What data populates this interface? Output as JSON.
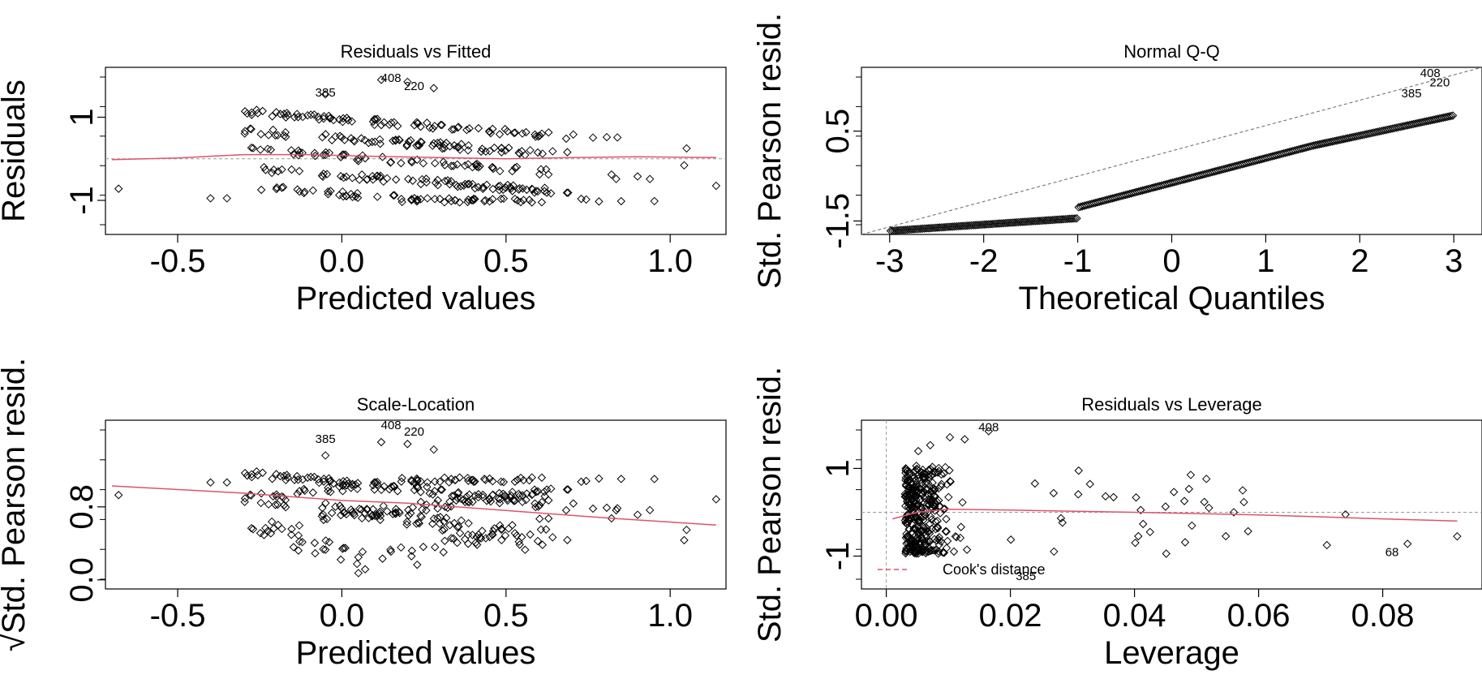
{
  "chart_data": [
    {
      "type": "scatter",
      "title": "Residuals vs Fitted",
      "xlabel": "Predicted values",
      "ylabel": "Residuals",
      "xlim": [
        -0.72,
        1.17
      ],
      "ylim": [
        -1.82,
        2.2
      ],
      "xticks": [
        -0.5,
        0.0,
        0.5,
        1.0
      ],
      "xtick_labels": [
        "-0.5",
        "0.0",
        "0.5",
        "1.0"
      ],
      "yticks": [
        -1,
        1
      ],
      "ytick_labels": [
        "-1",
        "1"
      ],
      "hline": 0,
      "smooth": [
        [
          -0.7,
          -0.02
        ],
        [
          -0.5,
          0.02
        ],
        [
          -0.3,
          0.1
        ],
        [
          -0.1,
          0.1
        ],
        [
          0.1,
          0.06
        ],
        [
          0.3,
          0.03
        ],
        [
          0.5,
          0.0
        ],
        [
          0.7,
          0.03
        ],
        [
          0.9,
          0.05
        ],
        [
          1.14,
          0.03
        ]
      ],
      "annotations": [
        {
          "label": "385",
          "x": -0.05,
          "y": 1.5
        },
        {
          "label": "408",
          "x": 0.15,
          "y": 1.85
        },
        {
          "label": "220",
          "x": 0.22,
          "y": 1.65
        }
      ]
    },
    {
      "type": "scatter",
      "title": "Normal Q-Q",
      "xlabel": "Theoretical Quantiles",
      "ylabel": "Std. Pearson resid.",
      "xlim": [
        -3.3,
        3.3
      ],
      "ylim": [
        -1.8,
        1.92
      ],
      "xticks": [
        -3,
        -2,
        -1,
        0,
        1,
        2,
        3
      ],
      "xtick_labels": [
        "-3",
        "-2",
        "-1",
        "0",
        "1",
        "2",
        "3"
      ],
      "yticks": [
        -1.5,
        0.5
      ],
      "ytick_labels": [
        "-1.5",
        "0.5"
      ],
      "refline": {
        "slope": 0.6,
        "intercept": 0
      },
      "annotations": [
        {
          "label": "408",
          "x": 2.75,
          "y": 1.7
        },
        {
          "label": "220",
          "x": 2.85,
          "y": 1.5
        },
        {
          "label": "385",
          "x": 2.55,
          "y": 1.25
        }
      ]
    },
    {
      "type": "scatter",
      "title": "Scale-Location",
      "xlabel": "Predicted values",
      "ylabel": "√Std. Pearson resid.",
      "xlim": [
        -0.72,
        1.17
      ],
      "ylim": [
        -0.1,
        1.75
      ],
      "xticks": [
        -0.5,
        0.0,
        0.5,
        1.0
      ],
      "xtick_labels": [
        "-0.5",
        "0.0",
        "0.5",
        "1.0"
      ],
      "yticks": [
        0.0,
        0.8
      ],
      "ytick_labels": [
        "0.0",
        "0.8"
      ],
      "smooth": [
        [
          -0.7,
          1.03
        ],
        [
          -0.3,
          0.95
        ],
        [
          0.0,
          0.87
        ],
        [
          0.2,
          0.84
        ],
        [
          0.5,
          0.76
        ],
        [
          0.8,
          0.68
        ],
        [
          1.14,
          0.6
        ]
      ],
      "annotations": [
        {
          "label": "385",
          "x": -0.05,
          "y": 1.5
        },
        {
          "label": "408",
          "x": 0.15,
          "y": 1.65
        },
        {
          "label": "220",
          "x": 0.22,
          "y": 1.58
        }
      ]
    },
    {
      "type": "scatter",
      "title": "Residuals vs Leverage",
      "xlabel": "Leverage",
      "ylabel": "Std. Pearson resid.",
      "xlim": [
        -0.004,
        0.096
      ],
      "ylim": [
        -1.75,
        2.1
      ],
      "xticks": [
        0.0,
        0.02,
        0.04,
        0.06,
        0.08
      ],
      "xtick_labels": [
        "0.00",
        "0.02",
        "0.04",
        "0.06",
        "0.08"
      ],
      "yticks": [
        -1,
        1
      ],
      "ytick_labels": [
        "-1",
        "1"
      ],
      "hline": 0,
      "vline": 0,
      "smooth": [
        [
          0.001,
          -0.15
        ],
        [
          0.005,
          0.0
        ],
        [
          0.01,
          0.07
        ],
        [
          0.02,
          0.05
        ],
        [
          0.04,
          0.0
        ],
        [
          0.06,
          -0.06
        ],
        [
          0.08,
          -0.15
        ],
        [
          0.092,
          -0.2
        ]
      ],
      "legend": {
        "label": "Cook's distance",
        "position": "bottom-left"
      },
      "annotations": [
        {
          "label": "408",
          "x": 0.0165,
          "y": 1.85
        },
        {
          "label": "68",
          "x": 0.0815,
          "y": -1.0
        },
        {
          "label": "385",
          "x": 0.0225,
          "y": -1.55
        }
      ]
    }
  ]
}
